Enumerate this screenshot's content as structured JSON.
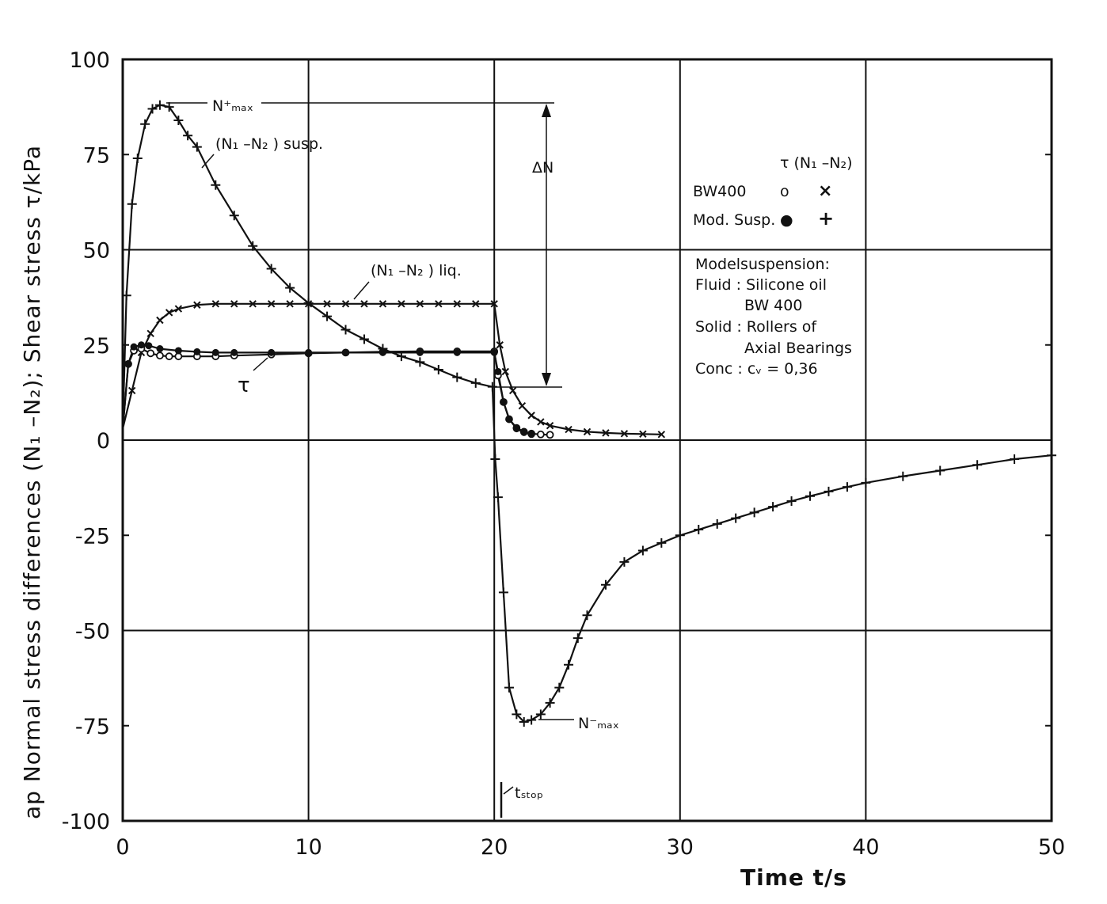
{
  "chart_data": {
    "type": "line",
    "title": "",
    "xlabel": "Time   t/s",
    "ylabel": "ap  Normal stress differences  (N₁ –N₂);  Shear  stress    τ/kPa",
    "xlim": [
      0,
      50
    ],
    "ylim": [
      -100,
      100
    ],
    "x_ticks": [
      0,
      10,
      20,
      30,
      40,
      50
    ],
    "y_ticks": [
      -100,
      -75,
      -50,
      -25,
      0,
      25,
      50,
      75,
      100
    ],
    "grid": true,
    "legend": {
      "position": "right",
      "header": "τ  (N₁ –N₂)",
      "rows": [
        {
          "label": "BW400",
          "tau_marker": "o",
          "n_marker": "×"
        },
        {
          "label": "Mod. Susp.",
          "tau_marker": "●",
          "n_marker": "+"
        }
      ]
    },
    "annotations": {
      "nmax_plus": "N⁺ₘₐₓ",
      "nmax_minus": "N⁻ₘₐₓ",
      "delta_n": "ΔN",
      "t_stop": "tₛₜₒₚ",
      "susp": "(N₁ –N₂ ) susp.",
      "liq": "(N₁ –N₂ ) liq.",
      "tau": "τ"
    },
    "note": [
      "Modelsuspension:",
      "Fluid : Silicone oil",
      "BW 400",
      "Solid : Rollers  of",
      "Axial Bearings",
      "Conc : cᵥ = 0,36"
    ],
    "series": [
      {
        "marker": "+",
        "x": [
          0,
          0.2,
          0.5,
          0.8,
          1.2,
          1.6,
          2.0,
          2.5,
          3.0,
          3.5,
          4.0,
          5.0,
          6.0,
          7.0,
          8.0,
          9.0,
          10.0,
          11.0,
          12.0,
          13.0,
          14.0,
          15.0,
          16.0,
          17.0,
          18.0,
          19.0,
          19.9,
          20.05,
          20.2,
          20.5,
          20.8,
          21.2,
          21.6,
          22.0,
          22.5,
          23.0,
          23.5,
          24.0,
          24.5,
          25.0,
          26.0,
          27.0,
          28.0,
          29.0,
          30.0,
          31.0,
          32.0,
          33.0,
          34.0,
          35.0,
          36.0,
          37.0,
          38.0,
          39.0,
          40.0,
          42.0,
          44.0,
          46.0,
          48.0,
          50.0
        ],
        "y": [
          3,
          38,
          62,
          74,
          83,
          87,
          88,
          87.5,
          84,
          80,
          77,
          67,
          59,
          51,
          45,
          40,
          36,
          32.5,
          29,
          26.5,
          24,
          22,
          20.5,
          18.5,
          16.5,
          15,
          14,
          -5,
          -15,
          -40,
          -65,
          -72,
          -74,
          -73.5,
          -72,
          -69,
          -65,
          -59,
          -52,
          -46,
          -38,
          -32,
          -29,
          -27,
          -25,
          -23.5,
          -22,
          -20.5,
          -19,
          -17.5,
          -16,
          -14.7,
          -13.5,
          -12.3,
          -11.2,
          -9.5,
          -8,
          -6.5,
          -5,
          -4
        ]
      },
      {
        "marker": "×",
        "x": [
          0,
          0.5,
          1.0,
          1.5,
          2.0,
          2.5,
          3.0,
          4.0,
          5.0,
          6.0,
          7.0,
          8.0,
          9.0,
          10.0,
          11.0,
          12.0,
          13.0,
          14.0,
          15.0,
          16.0,
          17.0,
          18.0,
          19.0,
          20.0,
          20.3,
          20.6,
          21.0,
          21.5,
          22.0,
          22.5,
          23.0,
          24.0,
          25.0,
          26.0,
          27.0,
          28.0,
          29.0
        ],
        "y": [
          3,
          13,
          23,
          28,
          31.5,
          33.5,
          34.5,
          35.5,
          35.8,
          35.8,
          35.8,
          35.8,
          35.8,
          35.8,
          35.8,
          35.8,
          35.8,
          35.8,
          35.8,
          35.8,
          35.8,
          35.8,
          35.8,
          35.8,
          25,
          18,
          13,
          9,
          6.5,
          4.8,
          3.8,
          2.8,
          2.2,
          1.9,
          1.7,
          1.6,
          1.5
        ]
      },
      {
        "marker": "o",
        "x": [
          0,
          0.3,
          0.6,
          1.0,
          1.5,
          2.0,
          2.5,
          3.0,
          4.0,
          5.0,
          6.0,
          8.0,
          10.0,
          12.0,
          14.0,
          16.0,
          18.0,
          20.0,
          20.2,
          20.5,
          20.8,
          21.2,
          21.6,
          22.0,
          22.5,
          23.0
        ],
        "y": [
          3,
          20,
          23.5,
          24,
          22.8,
          22.2,
          22,
          22,
          22,
          22,
          22.2,
          22.5,
          22.8,
          23,
          23.2,
          23.3,
          23.3,
          23.3,
          17,
          10,
          5.5,
          3.2,
          2.2,
          1.7,
          1.5,
          1.4
        ]
      },
      {
        "marker": "●",
        "x": [
          0,
          0.3,
          0.6,
          1.0,
          1.4,
          2.0,
          3.0,
          4.0,
          5.0,
          6.0,
          8.0,
          10.0,
          12.0,
          14.0,
          16.0,
          18.0,
          20.0,
          20.2,
          20.5,
          20.8,
          21.2,
          21.6,
          22.0
        ],
        "y": [
          3,
          20,
          24.5,
          25,
          24.8,
          24,
          23.5,
          23.2,
          23,
          23,
          23,
          23,
          23,
          23,
          23,
          23,
          23,
          18,
          10,
          5.5,
          3,
          2,
          1.5
        ]
      }
    ]
  }
}
